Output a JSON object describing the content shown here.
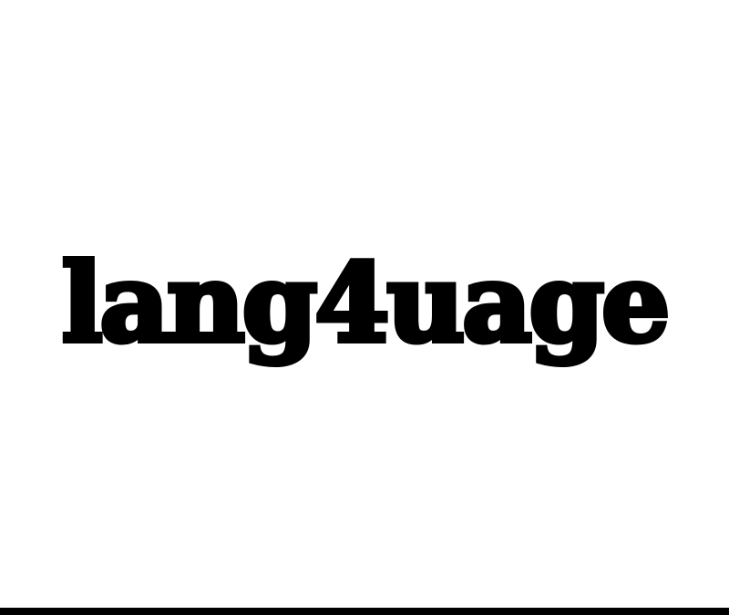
{
  "word": {
    "text": "lang4uage"
  },
  "colors": {
    "background": "#ffffff",
    "text": "#000000",
    "bottom_bar": "#000000"
  }
}
